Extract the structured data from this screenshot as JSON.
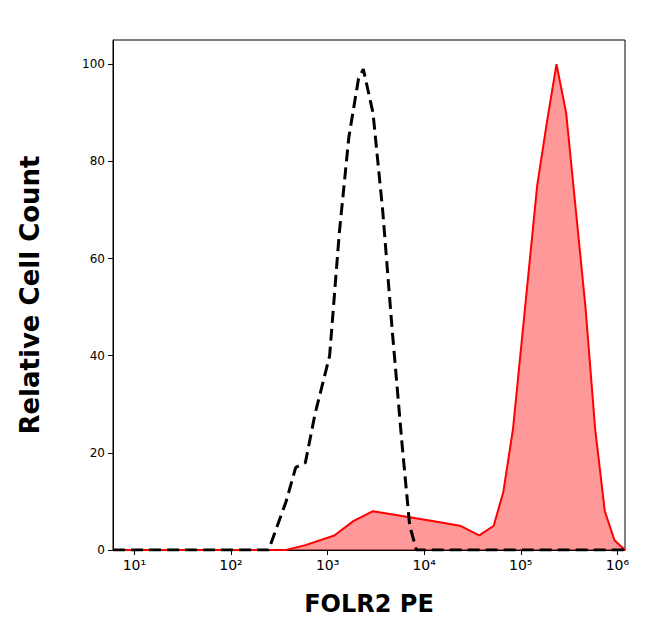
{
  "chart_data": {
    "type": "line",
    "x_label": "FOLR2 PE",
    "y_label": "Relative Cell Count",
    "log": "x",
    "grid": false,
    "xlim": [
      6,
      1200000
    ],
    "ylim": [
      0,
      105
    ],
    "xticks": [
      {
        "value": 10,
        "label": "10¹"
      },
      {
        "value": 100,
        "label": "10²"
      },
      {
        "value": 1000,
        "label": "10³"
      },
      {
        "value": 10000,
        "label": "10⁴"
      },
      {
        "value": 100000,
        "label": "10⁵"
      },
      {
        "value": 1000000,
        "label": "10⁶"
      }
    ],
    "yticks": [
      0,
      20,
      40,
      60,
      80,
      100
    ],
    "series": [
      {
        "type": "line",
        "color": "#000000",
        "line_style": "dashed",
        "x": [
          6,
          245,
          372,
          468,
          589,
          741,
          1050,
          1318,
          1660,
          2089,
          2344,
          2951,
          3715,
          4677,
          5888,
          7079,
          8318,
          1200000
        ],
        "values": [
          0,
          0,
          10,
          17,
          18,
          28,
          40,
          65,
          85,
          97,
          99,
          90,
          70,
          45,
          22,
          5,
          0,
          0
        ]
      },
      {
        "type": "area",
        "color": "#ff0000",
        "line_style": "solid",
        "x": [
          6,
          372,
          589,
          1175,
          1862,
          2951,
          5888,
          11749,
          23442,
          37154,
          52481,
          66069,
          83176,
          93325,
          117490,
          147911,
          186209,
          234423,
          295121,
          371535,
          467735,
          588844,
          741310,
          933254,
          1200000
        ],
        "values": [
          0,
          0,
          1,
          3,
          6,
          8,
          7,
          6,
          5,
          3,
          5,
          12,
          25,
          35,
          55,
          75,
          88,
          100,
          90,
          70,
          50,
          25,
          8,
          2,
          0
        ]
      }
    ]
  }
}
